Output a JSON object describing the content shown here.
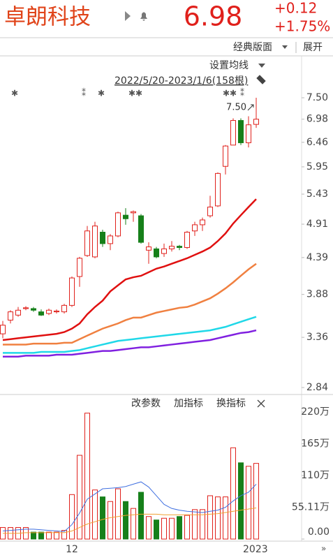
{
  "header": {
    "title": "卓朗科技",
    "price": "6.98",
    "change": "+0.12",
    "change_pct": "+1.75%"
  },
  "toolbar": {
    "layout": "经典版面",
    "expand": "展开"
  },
  "chart_data": [
    {
      "type": "candlestick",
      "ma_setting": "设置均线",
      "range_label": "2022/5/20-2023/1/6(158根)",
      "log_scale": true,
      "up_color": "#e0201b",
      "down_color": "#16801a",
      "categories": [
        null,
        null,
        null,
        null,
        null,
        null,
        null,
        null,
        null,
        "12",
        null,
        null,
        null,
        null,
        null,
        null,
        null,
        null,
        null,
        null,
        null,
        null,
        null,
        null,
        null,
        null,
        null,
        null,
        null,
        null,
        null,
        null,
        "2023",
        null
      ],
      "open": [
        3.4,
        3.56,
        3.62,
        3.7,
        3.7,
        3.66,
        3.64,
        3.66,
        3.66,
        3.74,
        4.12,
        4.42,
        4.4,
        4.78,
        4.6,
        4.72,
        5.06,
        5.1,
        5.05,
        4.5,
        4.52,
        4.45,
        4.52,
        4.56,
        4.54,
        4.8,
        4.9,
        5.05,
        5.22,
        5.96,
        6.4,
        6.95,
        6.45,
        6.86
      ],
      "close": [
        3.5,
        3.66,
        3.68,
        3.71,
        3.68,
        3.62,
        3.68,
        3.67,
        3.74,
        4.1,
        4.38,
        4.8,
        4.88,
        4.6,
        4.72,
        5.1,
        5.0,
        5.12,
        4.62,
        4.55,
        4.4,
        4.52,
        4.56,
        4.54,
        4.78,
        4.9,
        4.98,
        5.2,
        5.82,
        6.38,
        6.95,
        6.45,
        6.85,
        6.98
      ],
      "high": [
        3.55,
        3.68,
        3.72,
        3.73,
        3.72,
        3.69,
        3.7,
        3.69,
        3.76,
        4.12,
        4.4,
        4.88,
        4.95,
        4.82,
        4.75,
        5.12,
        5.18,
        5.14,
        5.08,
        4.62,
        4.55,
        4.6,
        4.64,
        4.58,
        4.8,
        4.95,
        5.02,
        5.4,
        5.84,
        6.4,
        7.0,
        7.0,
        7.05,
        7.5
      ],
      "low": [
        3.35,
        3.52,
        3.6,
        3.68,
        3.66,
        3.61,
        3.62,
        3.64,
        3.64,
        3.72,
        3.98,
        4.4,
        4.38,
        4.55,
        4.5,
        4.7,
        4.9,
        4.95,
        4.6,
        4.3,
        4.38,
        4.4,
        4.48,
        4.5,
        4.52,
        4.72,
        4.8,
        5.02,
        5.2,
        5.8,
        6.4,
        6.4,
        6.35,
        6.78
      ],
      "ma": [
        {
          "color": "#e01010",
          "values": [
            3.33,
            3.34,
            3.35,
            3.36,
            3.37,
            3.38,
            3.39,
            3.4,
            3.42,
            3.46,
            3.52,
            3.63,
            3.72,
            3.8,
            3.92,
            4.0,
            4.08,
            4.11,
            4.13,
            4.18,
            4.23,
            4.26,
            4.3,
            4.34,
            4.38,
            4.43,
            4.48,
            4.54,
            4.64,
            4.76,
            4.92,
            5.06,
            5.2,
            5.34
          ]
        },
        {
          "color": "#f08040",
          "values": [
            3.28,
            3.28,
            3.28,
            3.28,
            3.29,
            3.29,
            3.29,
            3.29,
            3.3,
            3.3,
            3.34,
            3.38,
            3.42,
            3.46,
            3.49,
            3.52,
            3.56,
            3.59,
            3.59,
            3.62,
            3.65,
            3.67,
            3.69,
            3.71,
            3.72,
            3.75,
            3.79,
            3.83,
            3.89,
            3.96,
            4.04,
            4.13,
            4.22,
            4.3
          ]
        },
        {
          "color": "#20d8e8",
          "values": [
            3.19,
            3.19,
            3.19,
            3.19,
            3.19,
            3.2,
            3.2,
            3.2,
            3.2,
            3.21,
            3.22,
            3.24,
            3.26,
            3.28,
            3.3,
            3.32,
            3.33,
            3.34,
            3.35,
            3.36,
            3.37,
            3.38,
            3.39,
            3.4,
            3.41,
            3.42,
            3.43,
            3.44,
            3.46,
            3.48,
            3.51,
            3.54,
            3.57,
            3.6
          ]
        },
        {
          "color": "#8020e0",
          "values": [
            3.15,
            3.15,
            3.15,
            3.16,
            3.16,
            3.16,
            3.16,
            3.17,
            3.17,
            3.17,
            3.18,
            3.19,
            3.2,
            3.21,
            3.21,
            3.22,
            3.23,
            3.24,
            3.25,
            3.25,
            3.26,
            3.27,
            3.28,
            3.29,
            3.3,
            3.31,
            3.32,
            3.33,
            3.35,
            3.37,
            3.39,
            3.41,
            3.42,
            3.44
          ]
        }
      ],
      "annotations": [
        {
          "text": "7.50"
        }
      ],
      "ylim": [
        2.84,
        7.5
      ],
      "yticks": [
        {
          "value": 7.5,
          "label": "7.50"
        },
        6.98,
        6.46,
        5.95,
        5.43,
        4.91,
        4.39,
        3.88,
        3.36,
        2.84
      ]
    },
    {
      "type": "volume",
      "buttons": [
        "改参数",
        "加指标",
        "换指标"
      ],
      "values": [
        20,
        20,
        20,
        20,
        12,
        12,
        12,
        12,
        15,
        77,
        145,
        218,
        85,
        73,
        65,
        87,
        65,
        53,
        81,
        39,
        33,
        36,
        36,
        39,
        41,
        51,
        51,
        75,
        73,
        73,
        158,
        132,
        126,
        131
      ],
      "series": [
        {
          "color": "#4070e0",
          "values": [
            14,
            15,
            16,
            17,
            17,
            16,
            15,
            14,
            13,
            25,
            45,
            69,
            78,
            87,
            88,
            89,
            91,
            95,
            99,
            90,
            75,
            60,
            53,
            50,
            48,
            47,
            46,
            48,
            50,
            55,
            66,
            75,
            81,
            95
          ]
        },
        {
          "color": "#f0a030",
          "values": [
            10,
            10,
            10,
            11,
            11,
            11,
            11,
            11,
            11,
            14,
            20,
            26,
            30,
            34,
            37,
            39,
            41,
            42,
            43,
            43,
            43,
            42,
            42,
            42,
            42,
            42,
            42,
            43,
            44,
            46,
            48,
            50,
            52,
            54
          ]
        }
      ],
      "ylim": [
        0,
        220
      ],
      "yticks": [
        {
          "value": 220,
          "label": "220万"
        },
        {
          "value": 165,
          "label": "165万"
        },
        {
          "value": 110,
          "label": "110万"
        },
        {
          "value": 55.11,
          "label": "55.11万"
        },
        {
          "value": 0,
          "label": "0.00"
        }
      ]
    }
  ]
}
